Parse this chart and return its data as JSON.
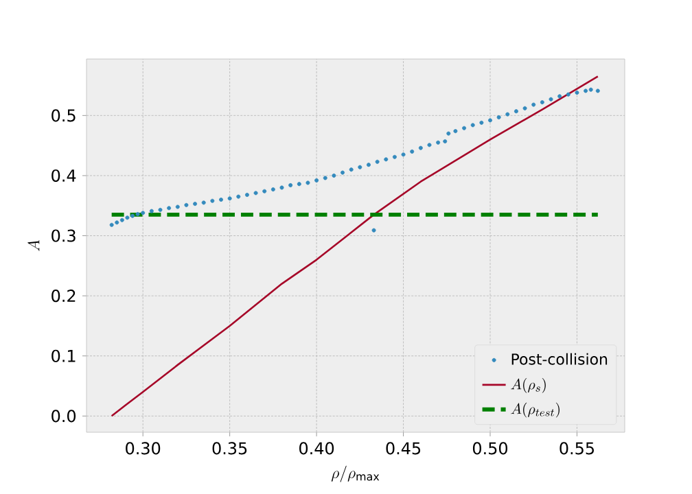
{
  "chart_data": {
    "type": "line",
    "xlabel": "\\rho/\\rho_{\\mathrm{max}}",
    "ylabel": "A",
    "xlim": [
      0.2675,
      0.5775
    ],
    "ylim": [
      -0.027,
      0.594
    ],
    "xticks": [
      {
        "value": 0.3,
        "label": "0.30"
      },
      0.35,
      {
        "value": 0.4,
        "label": "0.40"
      },
      0.45,
      {
        "value": 0.5,
        "label": "0.50"
      },
      0.55
    ],
    "yticks": [
      {
        "value": 0,
        "label": "0.0"
      },
      0.1,
      0.2,
      0.3,
      0.4,
      0.5
    ],
    "grid": true,
    "legend": "bottom right",
    "series": [
      {
        "name": "Post-collision",
        "type": "scatter",
        "marker": "circle",
        "color": "#348abd",
        "x": [
          0.282,
          0.285,
          0.288,
          0.291,
          0.294,
          0.297,
          0.3,
          0.305,
          0.31,
          0.315,
          0.32,
          0.325,
          0.33,
          0.335,
          0.34,
          0.345,
          0.35,
          0.355,
          0.36,
          0.365,
          0.37,
          0.375,
          0.38,
          0.385,
          0.39,
          0.395,
          0.4,
          0.405,
          0.41,
          0.415,
          0.42,
          0.425,
          0.43,
          0.433,
          0.435,
          0.44,
          0.445,
          0.45,
          0.455,
          0.46,
          0.465,
          0.47,
          0.474,
          0.476,
          0.48,
          0.485,
          0.49,
          0.495,
          0.5,
          0.505,
          0.51,
          0.515,
          0.52,
          0.525,
          0.53,
          0.535,
          0.54,
          0.545,
          0.55,
          0.555,
          0.558,
          0.562
        ],
        "values": [
          0.318,
          0.322,
          0.326,
          0.33,
          0.333,
          0.336,
          0.338,
          0.341,
          0.343,
          0.346,
          0.348,
          0.351,
          0.353,
          0.355,
          0.358,
          0.36,
          0.362,
          0.365,
          0.368,
          0.371,
          0.374,
          0.377,
          0.38,
          0.384,
          0.386,
          0.388,
          0.392,
          0.396,
          0.4,
          0.405,
          0.41,
          0.414,
          0.418,
          0.309,
          0.423,
          0.427,
          0.431,
          0.435,
          0.44,
          0.446,
          0.451,
          0.455,
          0.457,
          0.47,
          0.474,
          0.479,
          0.484,
          0.488,
          0.492,
          0.497,
          0.502,
          0.507,
          0.512,
          0.518,
          0.522,
          0.527,
          0.532,
          0.535,
          0.538,
          0.541,
          0.543,
          0.541
        ]
      },
      {
        "name": "A(\\rho_s)",
        "line_style": "solid",
        "color": "#a60628",
        "x": [
          0.282,
          0.29,
          0.3,
          0.32,
          0.35,
          0.38,
          0.4,
          0.433,
          0.46,
          0.5,
          0.53,
          0.562
        ],
        "values": [
          0.0,
          0.018,
          0.04,
          0.085,
          0.15,
          0.22,
          0.26,
          0.335,
          0.39,
          0.46,
          0.51,
          0.565
        ]
      },
      {
        "name": "A(\\rho_{test})",
        "line_style": "dashed",
        "color": "#008000",
        "x": [
          0.282,
          0.562
        ],
        "values": [
          0.335,
          0.335
        ]
      }
    ]
  }
}
